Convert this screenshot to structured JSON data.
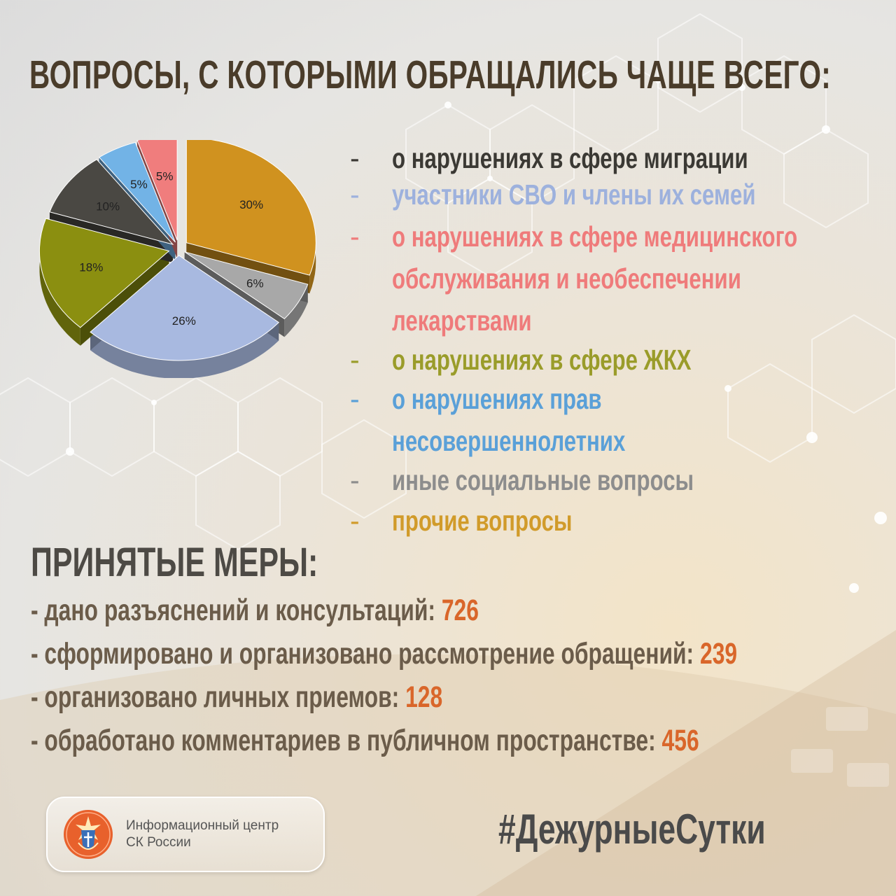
{
  "header": {
    "title": "ВОПРОСЫ, С КОТОРЫМИ ОБРАЩАЛИСЬ ЧАЩЕ ВСЕГО:"
  },
  "legend": [
    {
      "dash": "-",
      "lines": [
        "о нарушениях в сфере миграции"
      ],
      "color": "#3b3934"
    },
    {
      "dash": "-",
      "lines": [
        "участники СВО и члены их семей"
      ],
      "color": "#9db1dd"
    },
    {
      "dash": "-",
      "lines": [
        "о нарушениях в сфере медицинского",
        "обслуживания и необеспечении",
        "лекарствами"
      ],
      "color": "#ef7b7b"
    },
    {
      "dash": "-",
      "lines": [
        "о нарушениях в сфере ЖКХ"
      ],
      "color": "#9a9c2a"
    },
    {
      "dash": "-",
      "lines": [
        "о нарушениях прав",
        "несовершеннолетних"
      ],
      "color": "#5aa0d8"
    },
    {
      "dash": "-",
      "lines": [
        "иные социальные вопросы"
      ],
      "color": "#8d8d8d"
    },
    {
      "dash": "-",
      "lines": [
        "прочие вопросы"
      ],
      "color": "#d19b2a"
    }
  ],
  "chart_data": {
    "type": "pie",
    "slices": [
      {
        "label": "30%",
        "value": 30,
        "color": "#d0921f"
      },
      {
        "label": "6%",
        "value": 6,
        "color": "#a8a8a8"
      },
      {
        "label": "26%",
        "value": 26,
        "color": "#a8b9e0"
      },
      {
        "label": "18%",
        "value": 18,
        "color": "#8b8f10"
      },
      {
        "label": "10%",
        "value": 10,
        "color": "#4a4843"
      },
      {
        "label": "5%",
        "value": 5,
        "color": "#72b3e6"
      },
      {
        "label": "5%",
        "value": 5,
        "color": "#f07d7d"
      }
    ]
  },
  "measures": {
    "title": "ПРИНЯТЫЕ МЕРЫ:",
    "items": [
      {
        "label": "- дано разъяснений и консультаций: ",
        "value": "726"
      },
      {
        "label": "- сформировано и организовано рассмотрение обращений: ",
        "value": "239"
      },
      {
        "label": "- организовано личных приемов: ",
        "value": "128"
      },
      {
        "label": "- обработано комментариев в публичном пространстве: ",
        "value": "456"
      }
    ]
  },
  "footer": {
    "logo_line1": "Информационный центр",
    "logo_line2": "СК России",
    "hashtag": "#ДежурныеСутки"
  },
  "colors": {
    "accent_number": "#d9662a",
    "title": "#4a3c2a",
    "logo_orange": "#e8612c"
  }
}
